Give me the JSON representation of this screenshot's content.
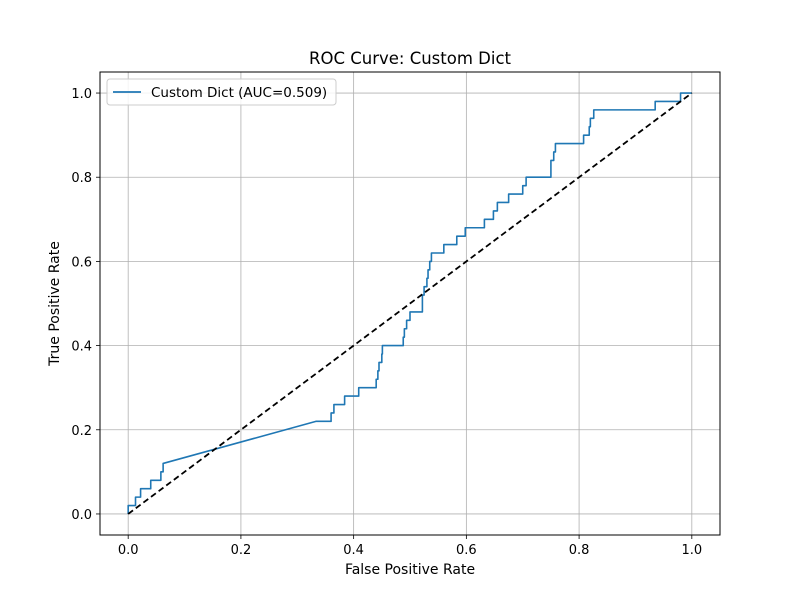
{
  "chart_data": {
    "type": "line",
    "title": "ROC Curve: Custom Dict",
    "xlabel": "False Positive Rate",
    "ylabel": "True Positive Rate",
    "xlim": [
      -0.05,
      1.05
    ],
    "ylim": [
      -0.05,
      1.05
    ],
    "xticks": [
      "0.0",
      "0.2",
      "0.4",
      "0.6",
      "0.8",
      "1.0"
    ],
    "yticks": [
      "0.0",
      "0.2",
      "0.4",
      "0.6",
      "0.8",
      "1.0"
    ],
    "grid": true,
    "legend_position": "top-left",
    "series": [
      {
        "name": "Custom Dict (AUC=0.509)",
        "color": "#1f77b4",
        "style": "solid",
        "points": [
          [
            0.0,
            0.0
          ],
          [
            0.0,
            0.02
          ],
          [
            0.013,
            0.02
          ],
          [
            0.013,
            0.04
          ],
          [
            0.022,
            0.04
          ],
          [
            0.022,
            0.06
          ],
          [
            0.04,
            0.06
          ],
          [
            0.04,
            0.08
          ],
          [
            0.058,
            0.08
          ],
          [
            0.058,
            0.1
          ],
          [
            0.062,
            0.1
          ],
          [
            0.062,
            0.12
          ],
          [
            0.333,
            0.22
          ],
          [
            0.36,
            0.22
          ],
          [
            0.36,
            0.24
          ],
          [
            0.365,
            0.24
          ],
          [
            0.365,
            0.26
          ],
          [
            0.384,
            0.26
          ],
          [
            0.384,
            0.28
          ],
          [
            0.409,
            0.28
          ],
          [
            0.409,
            0.3
          ],
          [
            0.44,
            0.3
          ],
          [
            0.44,
            0.32
          ],
          [
            0.443,
            0.32
          ],
          [
            0.443,
            0.34
          ],
          [
            0.445,
            0.34
          ],
          [
            0.445,
            0.36
          ],
          [
            0.45,
            0.36
          ],
          [
            0.45,
            0.38
          ],
          [
            0.451,
            0.38
          ],
          [
            0.451,
            0.4
          ],
          [
            0.488,
            0.4
          ],
          [
            0.488,
            0.42
          ],
          [
            0.49,
            0.42
          ],
          [
            0.49,
            0.44
          ],
          [
            0.494,
            0.44
          ],
          [
            0.494,
            0.46
          ],
          [
            0.5,
            0.46
          ],
          [
            0.5,
            0.48
          ],
          [
            0.522,
            0.48
          ],
          [
            0.522,
            0.52
          ],
          [
            0.525,
            0.52
          ],
          [
            0.525,
            0.54
          ],
          [
            0.53,
            0.54
          ],
          [
            0.53,
            0.56
          ],
          [
            0.532,
            0.56
          ],
          [
            0.532,
            0.58
          ],
          [
            0.535,
            0.58
          ],
          [
            0.535,
            0.6
          ],
          [
            0.538,
            0.6
          ],
          [
            0.538,
            0.62
          ],
          [
            0.56,
            0.62
          ],
          [
            0.56,
            0.64
          ],
          [
            0.583,
            0.64
          ],
          [
            0.583,
            0.66
          ],
          [
            0.598,
            0.66
          ],
          [
            0.598,
            0.68
          ],
          [
            0.632,
            0.68
          ],
          [
            0.632,
            0.7
          ],
          [
            0.648,
            0.7
          ],
          [
            0.648,
            0.72
          ],
          [
            0.655,
            0.72
          ],
          [
            0.655,
            0.74
          ],
          [
            0.675,
            0.74
          ],
          [
            0.675,
            0.76
          ],
          [
            0.7,
            0.76
          ],
          [
            0.7,
            0.78
          ],
          [
            0.706,
            0.78
          ],
          [
            0.706,
            0.8
          ],
          [
            0.75,
            0.8
          ],
          [
            0.75,
            0.84
          ],
          [
            0.755,
            0.84
          ],
          [
            0.755,
            0.86
          ],
          [
            0.758,
            0.86
          ],
          [
            0.758,
            0.88
          ],
          [
            0.808,
            0.88
          ],
          [
            0.808,
            0.9
          ],
          [
            0.818,
            0.9
          ],
          [
            0.818,
            0.92
          ],
          [
            0.82,
            0.92
          ],
          [
            0.82,
            0.94
          ],
          [
            0.826,
            0.94
          ],
          [
            0.826,
            0.96
          ],
          [
            0.935,
            0.96
          ],
          [
            0.935,
            0.98
          ],
          [
            0.98,
            0.98
          ],
          [
            0.98,
            1.0
          ],
          [
            1.0,
            1.0
          ]
        ]
      },
      {
        "color": "#000000",
        "style": "dashed",
        "points": [
          [
            0.0,
            0.0
          ],
          [
            1.0,
            1.0
          ]
        ]
      }
    ]
  }
}
